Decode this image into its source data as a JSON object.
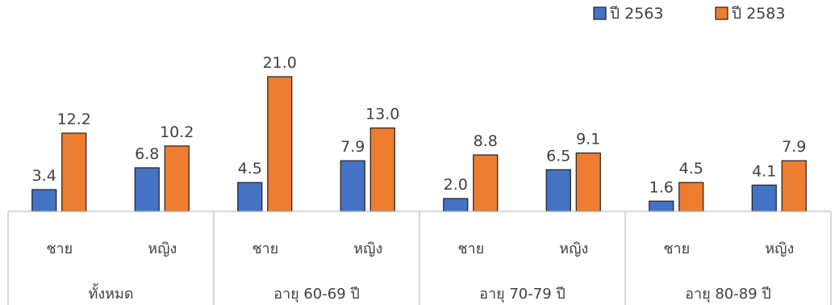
{
  "chart_data": {
    "type": "bar",
    "groups": [
      {
        "label": "ทั้งหมด",
        "categories": [
          "ชาย",
          "หญิง"
        ]
      },
      {
        "label": "อายุ 60-69 ปี",
        "categories": [
          "ชาย",
          "หญิง"
        ]
      },
      {
        "label": "อายุ 70-79 ปี",
        "categories": [
          "ชาย",
          "หญิง"
        ]
      },
      {
        "label": "อายุ 80-89 ปี",
        "categories": [
          "ชาย",
          "หญิง"
        ]
      }
    ],
    "series": [
      {
        "name": "ปี 2563",
        "color": "#4472C4",
        "values": [
          3.4,
          6.8,
          4.5,
          7.9,
          2.0,
          6.5,
          1.6,
          4.1
        ],
        "labels": [
          "3.4",
          "6.8",
          "4.5",
          "7.9",
          "2.0",
          "6.5",
          "1.6",
          "4.1"
        ]
      },
      {
        "name": "ปี 2583",
        "color": "#ED7D31",
        "values": [
          12.2,
          10.2,
          21.0,
          13.0,
          8.8,
          9.1,
          4.5,
          7.9
        ],
        "labels": [
          "12.2",
          "10.2",
          "21.0",
          "13.0",
          "8.8",
          "9.1",
          "4.5",
          "7.9"
        ]
      }
    ],
    "ylim": [
      0,
      22
    ],
    "legend": "top-right",
    "grid": false
  }
}
